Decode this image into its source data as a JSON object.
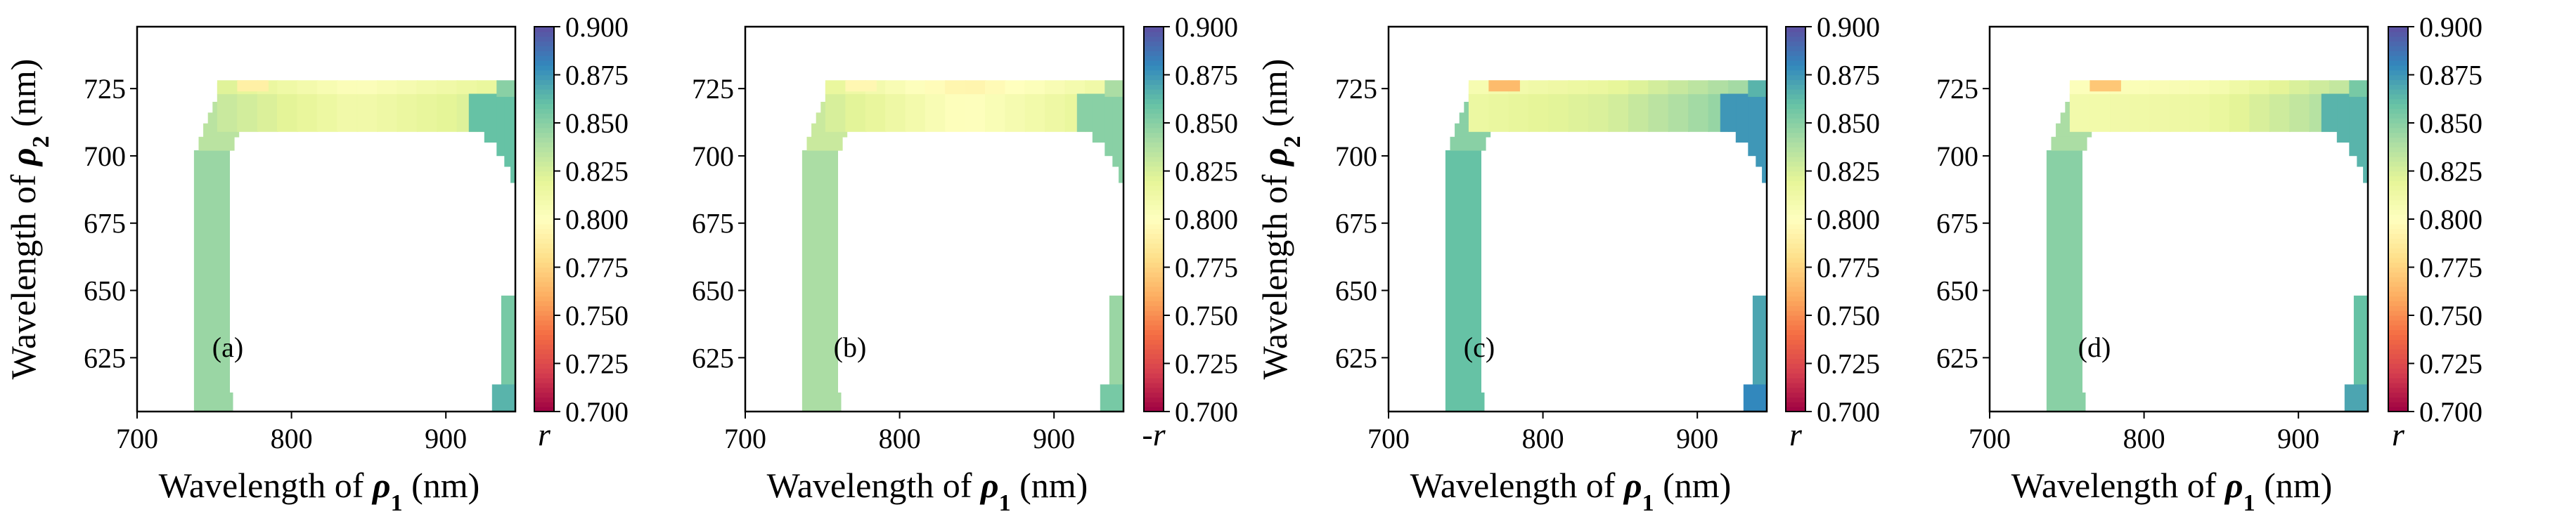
{
  "chart_data": [
    {
      "type": "heatmap",
      "panel_label": "(a)",
      "xlabel_prefix": "Wavelength of ",
      "xlabel_symbol": "ρ",
      "xlabel_sub": "1",
      "xlabel_suffix": " (nm)",
      "ylabel_prefix": "Wavelength of ",
      "ylabel_symbol": "ρ",
      "ylabel_sub": "2",
      "ylabel_suffix": " (nm)",
      "show_ylabel": true,
      "xlim": [
        700,
        945
      ],
      "ylim": [
        605,
        748
      ],
      "xticks": [
        700,
        800,
        900
      ],
      "yticks": [
        625,
        650,
        675,
        700,
        725
      ],
      "colorbar_title": "r",
      "colorbar_range": [
        0.7,
        0.9
      ],
      "colorbar_ticks": [
        "0.700",
        "0.725",
        "0.750",
        "0.775",
        "0.800",
        "0.825",
        "0.850",
        "0.875",
        "0.900"
      ],
      "colormap": "Spectral",
      "cell_values": {
        "left_strip": 0.845,
        "top_band_left": 0.83,
        "top_band_center": 0.81,
        "top_band_right": 0.825,
        "right_corner": 0.86,
        "right_edge": 0.865,
        "top_ridge": 0.79
      }
    },
    {
      "type": "heatmap",
      "panel_label": "(b)",
      "xlabel_prefix": "Wavelength of ",
      "xlabel_symbol": "ρ",
      "xlabel_sub": "1",
      "xlabel_suffix": " (nm)",
      "show_ylabel": false,
      "xlim": [
        700,
        945
      ],
      "ylim": [
        605,
        748
      ],
      "xticks": [
        700,
        800,
        900
      ],
      "yticks": [
        625,
        650,
        675,
        700,
        725
      ],
      "colorbar_title": "-r",
      "colorbar_range": [
        0.7,
        0.9
      ],
      "colorbar_ticks": [
        "0.700",
        "0.725",
        "0.750",
        "0.775",
        "0.800",
        "0.825",
        "0.850",
        "0.875",
        "0.900"
      ],
      "colormap": "Spectral",
      "cell_values": {
        "left_strip": 0.84,
        "top_band_left": 0.825,
        "top_band_center": 0.8,
        "top_band_right": 0.82,
        "right_corner": 0.85,
        "right_edge": 0.855,
        "top_ridge": 0.795
      }
    },
    {
      "type": "heatmap",
      "panel_label": "(c)",
      "xlabel_prefix": "Wavelength of ",
      "xlabel_symbol": "ρ",
      "xlabel_sub": "1",
      "xlabel_suffix": " (nm)",
      "ylabel_prefix": "Wavelength of ",
      "ylabel_symbol": "ρ",
      "ylabel_sub": "2",
      "ylabel_suffix": " (nm)",
      "show_ylabel": true,
      "xlim": [
        700,
        945
      ],
      "ylim": [
        605,
        748
      ],
      "xticks": [
        700,
        800,
        900
      ],
      "yticks": [
        625,
        650,
        675,
        700,
        725
      ],
      "colorbar_title": "r",
      "colorbar_range": [
        0.7,
        0.9
      ],
      "colorbar_ticks": [
        "0.700",
        "0.725",
        "0.750",
        "0.775",
        "0.800",
        "0.825",
        "0.850",
        "0.875",
        "0.900"
      ],
      "colormap": "Spectral",
      "cell_values": {
        "left_strip": 0.86,
        "top_band_left": 0.815,
        "top_band_center": 0.825,
        "top_band_right": 0.85,
        "right_corner": 0.875,
        "right_edge": 0.88,
        "top_ridge": 0.765
      }
    },
    {
      "type": "heatmap",
      "panel_label": "(d)",
      "xlabel_prefix": "Wavelength of ",
      "xlabel_symbol": "ρ",
      "xlabel_sub": "1",
      "xlabel_suffix": " (nm)",
      "show_ylabel": false,
      "xlim": [
        700,
        945
      ],
      "ylim": [
        605,
        748
      ],
      "xticks": [
        700,
        800,
        900
      ],
      "yticks": [
        625,
        650,
        675,
        700,
        725
      ],
      "colorbar_title": "r",
      "colorbar_range": [
        0.7,
        0.9
      ],
      "colorbar_ticks": [
        "0.700",
        "0.725",
        "0.750",
        "0.775",
        "0.800",
        "0.825",
        "0.850",
        "0.875",
        "0.900"
      ],
      "colormap": "Spectral",
      "cell_values": {
        "left_strip": 0.85,
        "top_band_left": 0.81,
        "top_band_center": 0.815,
        "top_band_right": 0.84,
        "right_corner": 0.865,
        "right_edge": 0.87,
        "top_ridge": 0.77
      }
    }
  ]
}
